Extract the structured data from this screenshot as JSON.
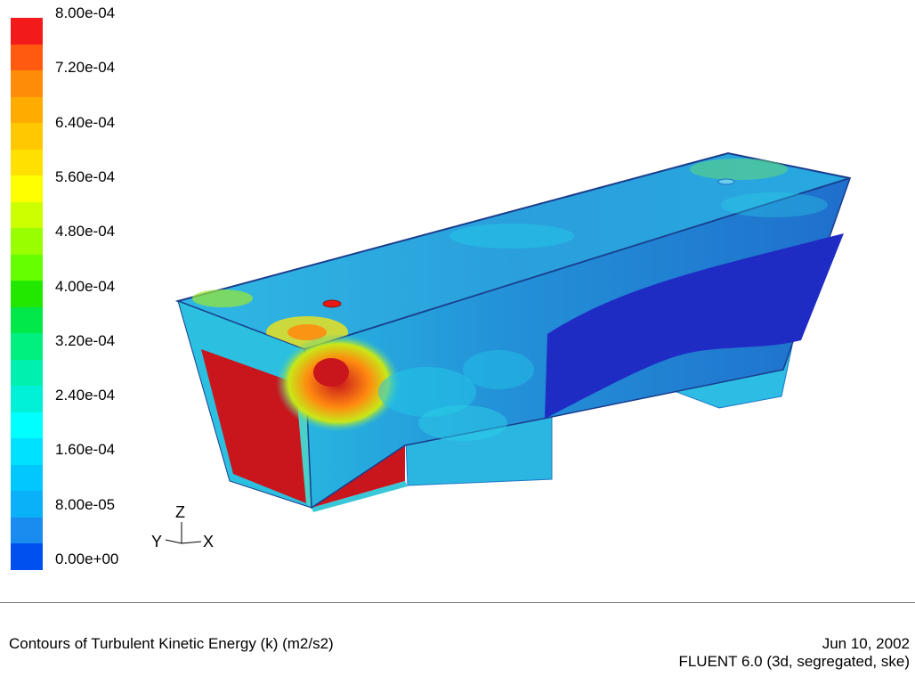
{
  "legend": {
    "ticks": [
      "8.00e-04",
      "7.20e-04",
      "6.40e-04",
      "5.60e-04",
      "4.80e-04",
      "4.00e-04",
      "3.20e-04",
      "2.40e-04",
      "1.60e-04",
      "8.00e-05",
      "0.00e+00"
    ],
    "colors": [
      "#f21a1a",
      "#ff5a10",
      "#ff8c08",
      "#ffab00",
      "#ffc800",
      "#ffe000",
      "#ffff00",
      "#ccff00",
      "#99ff00",
      "#66ff00",
      "#22e800",
      "#00e84a",
      "#00f080",
      "#00f0b0",
      "#00f0d8",
      "#00ffff",
      "#00e0ff",
      "#00c8ff",
      "#0ab0f8",
      "#1a8cf0",
      "#0050f0"
    ]
  },
  "axes": {
    "z": "Z",
    "y": "Y",
    "x": "X"
  },
  "footer": {
    "caption": "Contours of Turbulent Kinetic Energy (k) (m2/s2)",
    "date": "Jun 10, 2002",
    "version": "FLUENT 6.0 (3d, segregated, ske)"
  },
  "surface_colors": {
    "top": "#2aa6e0",
    "front": "#1e88d4",
    "dark": "#1f2cc4",
    "hot": "#c8161c",
    "cyan": "#22c7e8"
  }
}
